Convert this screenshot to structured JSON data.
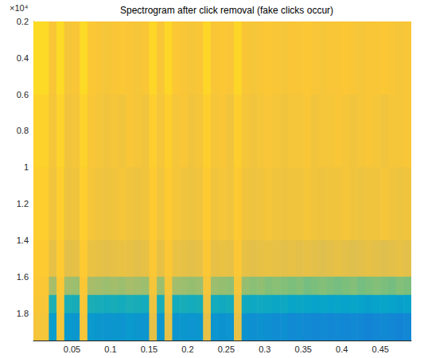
{
  "chart_data": {
    "type": "heatmap",
    "title": "Spectrogram after click removal (fake clicks occur)",
    "annotations": [
      "×10⁴"
    ],
    "xlim": [
      0,
      0.49
    ],
    "xticks": [
      0.05,
      0.1,
      0.15,
      0.2,
      0.25,
      0.3,
      0.35,
      0.4,
      0.45
    ],
    "ylim": [
      0.2,
      1.95
    ],
    "yticks": [
      0.2,
      0.4,
      0.6,
      0.8,
      1,
      1.2,
      1.4,
      1.6,
      1.8
    ],
    "time_bins": [
      0,
      0.01,
      0.02,
      0.03,
      0.04,
      0.05,
      0.06,
      0.07,
      0.08,
      0.09,
      0.1,
      0.11,
      0.12,
      0.13,
      0.14,
      0.15,
      0.16,
      0.17,
      0.18,
      0.19,
      0.2,
      0.21,
      0.22,
      0.23,
      0.24,
      0.25,
      0.26,
      0.27,
      0.28,
      0.29,
      0.3,
      0.31,
      0.32,
      0.33,
      0.34,
      0.35,
      0.36,
      0.37,
      0.38,
      0.39,
      0.4,
      0.41,
      0.42,
      0.43,
      0.44,
      0.45,
      0.46,
      0.47,
      0.48,
      0.49
    ],
    "freq_bins": [
      0.2,
      0.6,
      1.0,
      1.4,
      1.6,
      1.7,
      1.8,
      1.95
    ],
    "zlim": [
      0,
      10
    ],
    "cells": [
      [
        9.2,
        9.2,
        8.6,
        9.2,
        8.5,
        8.6,
        9.2,
        8.7,
        8.6,
        8.5,
        8.6,
        8.7,
        8.6,
        8.5,
        8.6,
        9.1,
        8.6,
        9.1,
        8.7,
        8.6,
        8.5,
        8.6,
        9.1,
        8.6,
        8.7,
        8.6,
        9.1,
        8.6,
        8.5,
        8.6,
        8.7,
        8.6,
        8.5,
        8.6,
        8.6,
        8.7,
        8.6,
        8.5,
        8.6,
        8.6,
        8.7,
        8.6,
        8.5,
        8.6,
        8.6,
        8.7,
        8.6,
        8.5,
        8.6
      ],
      [
        9.0,
        9.0,
        8.5,
        9.0,
        8.4,
        8.5,
        9.0,
        8.6,
        8.5,
        8.4,
        8.5,
        8.4,
        8.6,
        8.5,
        8.4,
        8.9,
        8.5,
        8.9,
        8.5,
        8.6,
        8.4,
        8.5,
        8.9,
        8.5,
        8.6,
        8.4,
        8.9,
        8.5,
        8.4,
        8.5,
        8.6,
        8.5,
        8.4,
        8.5,
        8.5,
        8.6,
        8.4,
        8.5,
        8.5,
        8.6,
        8.5,
        8.4,
        8.5,
        8.6,
        8.5,
        8.4,
        8.5,
        8.5,
        8.6
      ],
      [
        8.9,
        8.9,
        8.4,
        8.9,
        8.3,
        8.4,
        8.9,
        8.5,
        8.4,
        8.3,
        8.4,
        8.5,
        8.4,
        8.3,
        8.4,
        8.8,
        8.4,
        8.8,
        8.5,
        8.4,
        8.3,
        8.4,
        8.8,
        8.4,
        8.5,
        8.4,
        8.8,
        8.4,
        8.3,
        8.4,
        8.5,
        8.4,
        8.3,
        8.4,
        8.4,
        8.5,
        8.4,
        8.3,
        8.4,
        8.4,
        8.5,
        8.4,
        8.3,
        8.4,
        8.4,
        8.5,
        8.4,
        8.3,
        8.4
      ],
      [
        8.8,
        8.8,
        8.1,
        8.8,
        8.0,
        8.1,
        8.8,
        8.2,
        8.1,
        8.0,
        8.1,
        8.2,
        8.1,
        8.0,
        8.1,
        8.7,
        8.1,
        8.7,
        8.2,
        8.1,
        8.0,
        8.1,
        8.7,
        8.1,
        8.2,
        8.1,
        8.7,
        8.1,
        8.0,
        8.1,
        8.2,
        8.1,
        8.0,
        8.1,
        8.0,
        8.1,
        8.0,
        7.9,
        8.0,
        8.1,
        8.0,
        7.9,
        8.0,
        8.1,
        8.0,
        7.9,
        8.0,
        8.1,
        8.0
      ],
      [
        8.7,
        8.7,
        6.8,
        8.7,
        6.7,
        6.6,
        8.7,
        6.8,
        6.7,
        6.6,
        6.7,
        6.6,
        6.8,
        6.7,
        6.6,
        8.5,
        6.6,
        8.5,
        6.7,
        6.6,
        6.5,
        6.6,
        8.5,
        6.6,
        6.5,
        6.4,
        8.5,
        6.5,
        6.3,
        6.4,
        6.2,
        6.3,
        6.2,
        6.1,
        6.2,
        6.0,
        6.1,
        6.2,
        6.1,
        6.0,
        6.1,
        6.2,
        6.0,
        6.1,
        6.2,
        6.1,
        6.0,
        6.2,
        6.1
      ],
      [
        8.6,
        8.6,
        4.5,
        8.6,
        4.4,
        4.3,
        8.6,
        4.4,
        4.3,
        4.2,
        4.3,
        4.2,
        4.4,
        4.3,
        4.2,
        8.3,
        4.3,
        8.3,
        4.2,
        4.3,
        4.2,
        4.3,
        8.3,
        4.2,
        4.1,
        4.2,
        8.3,
        4.1,
        4.0,
        4.1,
        4.0,
        3.9,
        4.0,
        3.8,
        3.9,
        3.8,
        3.7,
        3.8,
        3.7,
        3.8,
        3.7,
        3.8,
        3.7,
        3.6,
        3.7,
        3.8,
        3.7,
        3.6,
        3.7
      ],
      [
        8.5,
        8.5,
        3.5,
        8.5,
        3.4,
        3.3,
        8.5,
        3.4,
        3.3,
        3.2,
        3.3,
        3.2,
        3.4,
        3.3,
        3.2,
        8.1,
        3.3,
        8.1,
        3.2,
        3.3,
        3.2,
        3.3,
        8.1,
        3.2,
        3.1,
        3.2,
        8.1,
        3.1,
        3.0,
        3.1,
        3.0,
        2.9,
        3.0,
        2.8,
        2.9,
        2.8,
        2.7,
        2.8,
        2.7,
        2.8,
        2.7,
        2.8,
        2.7,
        2.6,
        2.7,
        2.8,
        2.7,
        2.6,
        2.7
      ]
    ]
  }
}
